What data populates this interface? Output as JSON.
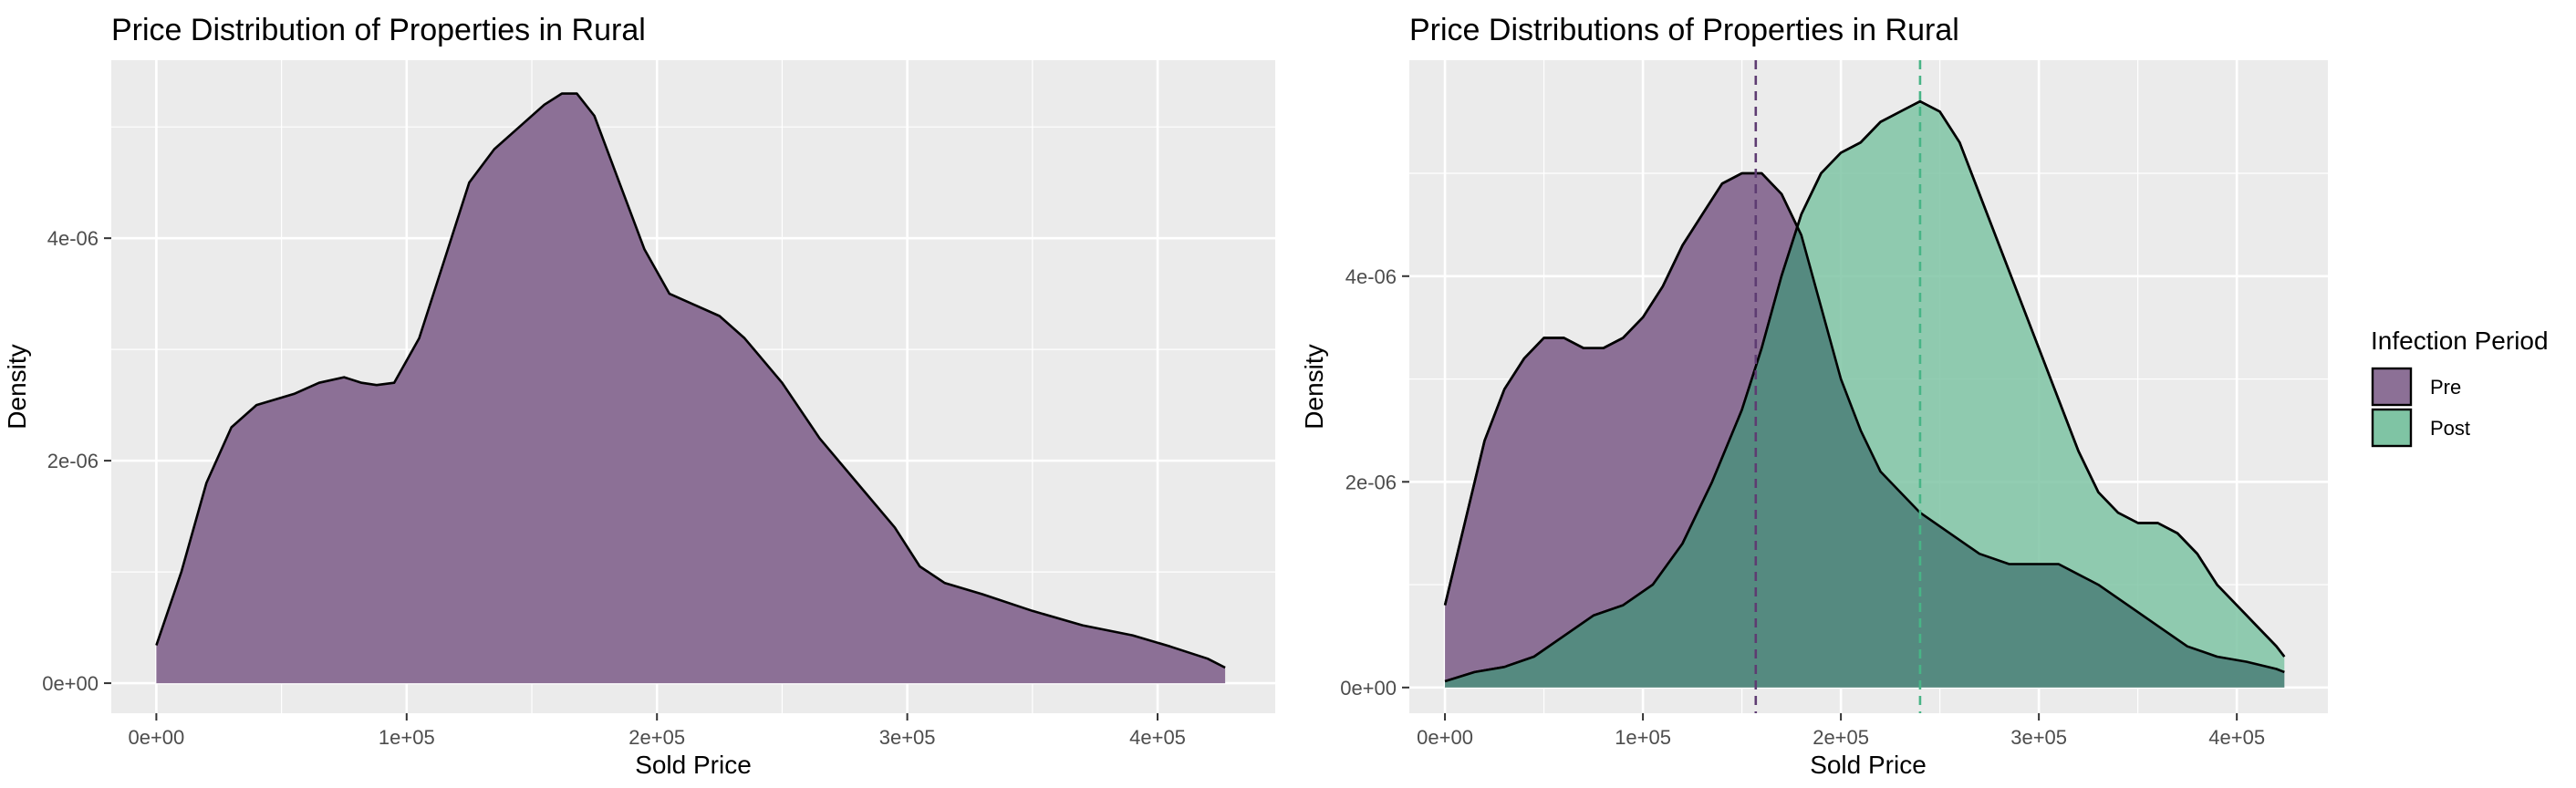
{
  "chart_data": [
    {
      "type": "area",
      "title": "Price Distribution of Properties in Rural",
      "xlabel": "Sold Price",
      "ylabel": "Density",
      "xlim": [
        -18000,
        447000
      ],
      "ylim": [
        -2.7e-07,
        5.6e-06
      ],
      "x_ticks": [
        0,
        100000,
        200000,
        300000,
        400000
      ],
      "x_tick_labels": [
        "0e+00",
        "1e+05",
        "2e+05",
        "3e+05",
        "4e+05"
      ],
      "y_ticks": [
        0,
        2e-06,
        4e-06
      ],
      "y_tick_labels": [
        "0e+00",
        "2e-06",
        "4e-06"
      ],
      "grid": true,
      "series": [
        {
          "color": "#8C7096",
          "points": [
            [
              0,
              3.4e-07
            ],
            [
              10000,
              1e-06
            ],
            [
              20000,
              1.8e-06
            ],
            [
              30000,
              2.3e-06
            ],
            [
              40000,
              2.5e-06
            ],
            [
              55000,
              2.6e-06
            ],
            [
              65000,
              2.7e-06
            ],
            [
              75000,
              2.75e-06
            ],
            [
              82000,
              2.7e-06
            ],
            [
              88000,
              2.68e-06
            ],
            [
              95000,
              2.7e-06
            ],
            [
              105000,
              3.1e-06
            ],
            [
              115000,
              3.8e-06
            ],
            [
              125000,
              4.5e-06
            ],
            [
              135000,
              4.8e-06
            ],
            [
              145000,
              5e-06
            ],
            [
              155000,
              5.2e-06
            ],
            [
              162000,
              5.3e-06
            ],
            [
              168000,
              5.3e-06
            ],
            [
              175000,
              5.1e-06
            ],
            [
              185000,
              4.5e-06
            ],
            [
              195000,
              3.9e-06
            ],
            [
              205000,
              3.5e-06
            ],
            [
              215000,
              3.4e-06
            ],
            [
              225000,
              3.3e-06
            ],
            [
              235000,
              3.1e-06
            ],
            [
              250000,
              2.7e-06
            ],
            [
              265000,
              2.2e-06
            ],
            [
              280000,
              1.8e-06
            ],
            [
              295000,
              1.4e-06
            ],
            [
              305000,
              1.05e-06
            ],
            [
              315000,
              9e-07
            ],
            [
              330000,
              8e-07
            ],
            [
              350000,
              6.5e-07
            ],
            [
              370000,
              5.2e-07
            ],
            [
              390000,
              4.3e-07
            ],
            [
              405000,
              3.3e-07
            ],
            [
              420000,
              2.2e-07
            ],
            [
              427000,
              1.4e-07
            ]
          ]
        }
      ]
    },
    {
      "type": "area",
      "title": "Price Distributions of Properties in Rural",
      "xlabel": "Sold Price",
      "ylabel": "Density",
      "xlim": [
        -18000,
        446000
      ],
      "ylim": [
        -2.5e-07,
        6.1e-06
      ],
      "x_ticks": [
        0,
        100000,
        200000,
        300000,
        400000
      ],
      "x_tick_labels": [
        "0e+00",
        "1e+05",
        "2e+05",
        "3e+05",
        "4e+05"
      ],
      "y_ticks": [
        0,
        2e-06,
        4e-06
      ],
      "y_tick_labels": [
        "0e+00",
        "2e-06",
        "4e-06"
      ],
      "grid": true,
      "legend": {
        "title": "Infection Period",
        "placement": "right",
        "entries": [
          "Pre",
          "Post"
        ]
      },
      "series": [
        {
          "name": "Pre",
          "color": "#8C7096",
          "line_color": "#5E3C72",
          "mean": 157000,
          "points": [
            [
              0,
              8e-07
            ],
            [
              10000,
              1.6e-06
            ],
            [
              20000,
              2.4e-06
            ],
            [
              30000,
              2.9e-06
            ],
            [
              40000,
              3.2e-06
            ],
            [
              50000,
              3.4e-06
            ],
            [
              60000,
              3.4e-06
            ],
            [
              70000,
              3.3e-06
            ],
            [
              80000,
              3.3e-06
            ],
            [
              90000,
              3.4e-06
            ],
            [
              100000,
              3.6e-06
            ],
            [
              110000,
              3.9e-06
            ],
            [
              120000,
              4.3e-06
            ],
            [
              130000,
              4.6e-06
            ],
            [
              140000,
              4.9e-06
            ],
            [
              150000,
              5e-06
            ],
            [
              160000,
              5e-06
            ],
            [
              170000,
              4.8e-06
            ],
            [
              180000,
              4.4e-06
            ],
            [
              190000,
              3.7e-06
            ],
            [
              200000,
              3e-06
            ],
            [
              210000,
              2.5e-06
            ],
            [
              220000,
              2.1e-06
            ],
            [
              230000,
              1.9e-06
            ],
            [
              240000,
              1.7e-06
            ],
            [
              255000,
              1.5e-06
            ],
            [
              270000,
              1.3e-06
            ],
            [
              285000,
              1.2e-06
            ],
            [
              300000,
              1.2e-06
            ],
            [
              310000,
              1.2e-06
            ],
            [
              320000,
              1.1e-06
            ],
            [
              330000,
              1e-06
            ],
            [
              345000,
              8e-07
            ],
            [
              360000,
              6e-07
            ],
            [
              375000,
              4e-07
            ],
            [
              390000,
              3e-07
            ],
            [
              405000,
              2.5e-07
            ],
            [
              420000,
              1.8e-07
            ],
            [
              424000,
              1.5e-07
            ]
          ]
        },
        {
          "name": "Post",
          "color": "#7FC4A4",
          "line_color": "#48B486",
          "mean": 240000,
          "points": [
            [
              0,
              6e-08
            ],
            [
              15000,
              1.5e-07
            ],
            [
              30000,
              2e-07
            ],
            [
              45000,
              3e-07
            ],
            [
              60000,
              5e-07
            ],
            [
              75000,
              7e-07
            ],
            [
              90000,
              8e-07
            ],
            [
              105000,
              1e-06
            ],
            [
              120000,
              1.4e-06
            ],
            [
              135000,
              2e-06
            ],
            [
              150000,
              2.7e-06
            ],
            [
              160000,
              3.3e-06
            ],
            [
              170000,
              4e-06
            ],
            [
              180000,
              4.6e-06
            ],
            [
              190000,
              5e-06
            ],
            [
              200000,
              5.2e-06
            ],
            [
              210000,
              5.3e-06
            ],
            [
              220000,
              5.5e-06
            ],
            [
              230000,
              5.6e-06
            ],
            [
              240000,
              5.7e-06
            ],
            [
              250000,
              5.6e-06
            ],
            [
              260000,
              5.3e-06
            ],
            [
              270000,
              4.8e-06
            ],
            [
              280000,
              4.3e-06
            ],
            [
              290000,
              3.8e-06
            ],
            [
              300000,
              3.3e-06
            ],
            [
              310000,
              2.8e-06
            ],
            [
              320000,
              2.3e-06
            ],
            [
              330000,
              1.9e-06
            ],
            [
              340000,
              1.7e-06
            ],
            [
              350000,
              1.6e-06
            ],
            [
              360000,
              1.6e-06
            ],
            [
              370000,
              1.5e-06
            ],
            [
              380000,
              1.3e-06
            ],
            [
              390000,
              1e-06
            ],
            [
              400000,
              8e-07
            ],
            [
              410000,
              6e-07
            ],
            [
              420000,
              4e-07
            ],
            [
              424000,
              3e-07
            ]
          ]
        }
      ]
    }
  ]
}
